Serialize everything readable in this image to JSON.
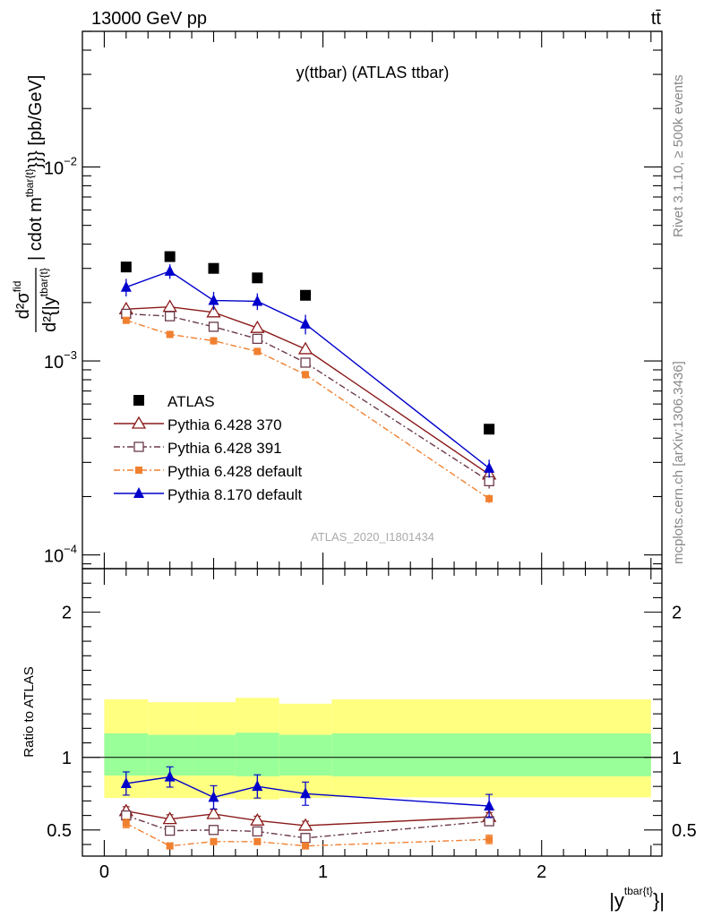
{
  "header": {
    "energy_label": "13000 GeV pp",
    "process_label": "tt̄"
  },
  "side_labels": {
    "rivet": "Rivet 3.1.10, ≥ 500k events",
    "mcplots": "mcplots.cern.ch [arXiv:1306.3436]"
  },
  "chart_data": [
    {
      "type": "line",
      "title": "y(ttbar) (ATLAS ttbar)",
      "analysis_label": "ATLAS_2020_I1801434",
      "ylabel": "d²σfid / d²{|ytbar{t}|cdot mtbar{t}}} [pb/GeV]",
      "ylabel_parts": {
        "num": "d²σ",
        "num_sup": "fid",
        "den": "d²{|y",
        "den_sup": "tbar{t}",
        "rest": "| cdot m",
        "rest_sup": "tbar{t}",
        "tail": "}}} [pb/GeV]"
      },
      "yscale": "log",
      "xlim": [
        -0.1,
        2.55
      ],
      "ylim": [
        8.5e-05,
        0.05
      ],
      "yticks": [
        {
          "value": 0.01,
          "base": "10",
          "exp": "−2"
        },
        {
          "value": 0.001,
          "base": "10",
          "exp": "−3"
        },
        {
          "value": 0.0001,
          "base": "10",
          "exp": "−4"
        }
      ],
      "legend_position": "bottom-left",
      "series": [
        {
          "name": "ATLAS",
          "marker": "filled-square",
          "color": "#000000",
          "x": [
            0.1,
            0.3,
            0.5,
            0.7,
            0.92,
            1.76
          ],
          "y": [
            0.00305,
            0.00345,
            0.003,
            0.00268,
            0.00218,
            0.000445
          ]
        },
        {
          "name": "Pythia 6.428 370",
          "marker": "open-triangle",
          "color": "#8b1a1a",
          "dash": "solid",
          "x": [
            0.1,
            0.3,
            0.5,
            0.7,
            0.92,
            1.76
          ],
          "y": [
            0.00185,
            0.0019,
            0.00178,
            0.00148,
            0.00115,
            0.00026
          ],
          "err": [
            8e-05,
            8e-05,
            8e-05,
            7e-05,
            6e-05,
            2e-05
          ]
        },
        {
          "name": "Pythia 6.428 391",
          "marker": "open-square",
          "color": "#6b3a4a",
          "dash": "dashdot",
          "x": [
            0.1,
            0.3,
            0.5,
            0.7,
            0.92,
            1.76
          ],
          "y": [
            0.00175,
            0.0017,
            0.0015,
            0.0013,
            0.00098,
            0.00024
          ],
          "err": [
            7e-05,
            7e-05,
            7e-05,
            6e-05,
            5e-05,
            2e-05
          ]
        },
        {
          "name": "Pythia 6.428 default",
          "marker": "filled-circle",
          "color": "#f08030",
          "dash": "dashdot",
          "x": [
            0.1,
            0.3,
            0.5,
            0.7,
            0.92,
            1.76
          ],
          "y": [
            0.00162,
            0.00137,
            0.00127,
            0.00112,
            0.00085,
            0.000195
          ],
          "err": [
            7e-05,
            6e-05,
            6e-05,
            5e-05,
            4e-05,
            1e-05
          ]
        },
        {
          "name": "Pythia 8.170 default",
          "marker": "filled-triangle",
          "color": "#0000cc",
          "dash": "solid",
          "x": [
            0.1,
            0.3,
            0.5,
            0.7,
            0.92,
            1.76
          ],
          "y": [
            0.0024,
            0.0029,
            0.00205,
            0.00203,
            0.00155,
            0.00028
          ],
          "err": [
            0.00025,
            0.00025,
            0.00022,
            0.0002,
            0.00018,
            3e-05
          ]
        }
      ]
    },
    {
      "type": "line",
      "ylabel": "Ratio to ATLAS",
      "xlabel_base": "|y",
      "xlabel_sup": "tbar{t}",
      "xlabel_tail": "}|",
      "xlim": [
        -0.1,
        2.55
      ],
      "ylim": [
        0.32,
        2.3
      ],
      "yticks": [
        0.5,
        1,
        2
      ],
      "xticks": [
        0,
        1,
        2
      ],
      "uncertainty_bands": [
        {
          "x0": 0.0,
          "x1": 0.2,
          "yellow": [
            0.72,
            1.4
          ],
          "green": [
            0.875,
            1.165
          ]
        },
        {
          "x0": 0.2,
          "x1": 0.4,
          "yellow": [
            0.72,
            1.38
          ],
          "green": [
            0.875,
            1.155
          ]
        },
        {
          "x0": 0.4,
          "x1": 0.6,
          "yellow": [
            0.72,
            1.38
          ],
          "green": [
            0.875,
            1.155
          ]
        },
        {
          "x0": 0.6,
          "x1": 0.8,
          "yellow": [
            0.71,
            1.41
          ],
          "green": [
            0.87,
            1.17
          ]
        },
        {
          "x0": 0.8,
          "x1": 1.04,
          "yellow": [
            0.72,
            1.37
          ],
          "green": [
            0.875,
            1.155
          ]
        },
        {
          "x0": 1.04,
          "x1": 2.5,
          "yellow": [
            0.725,
            1.4
          ],
          "green": [
            0.87,
            1.165
          ]
        }
      ],
      "series": [
        {
          "name": "Pythia 6.428 370",
          "marker": "open-triangle",
          "color": "#8b1a1a",
          "dash": "solid",
          "x": [
            0.1,
            0.3,
            0.5,
            0.7,
            0.92,
            1.76
          ],
          "y": [
            0.63,
            0.575,
            0.61,
            0.565,
            0.53,
            0.59
          ],
          "err": [
            0.03,
            0.03,
            0.03,
            0.03,
            0.03,
            0.03
          ]
        },
        {
          "name": "Pythia 6.428 391",
          "marker": "open-square",
          "color": "#6b3a4a",
          "dash": "dashdot",
          "x": [
            0.1,
            0.3,
            0.5,
            0.7,
            0.92,
            1.76
          ],
          "y": [
            0.6,
            0.495,
            0.5,
            0.49,
            0.445,
            0.56
          ],
          "err": [
            0.03,
            0.03,
            0.03,
            0.03,
            0.03,
            0.03
          ]
        },
        {
          "name": "Pythia 6.428 default",
          "marker": "filled-circle",
          "color": "#f08030",
          "dash": "dashdot",
          "x": [
            0.1,
            0.3,
            0.5,
            0.7,
            0.92,
            1.76
          ],
          "y": [
            0.545,
            0.39,
            0.42,
            0.42,
            0.39,
            0.435
          ],
          "err": [
            0.03,
            0.02,
            0.02,
            0.02,
            0.02,
            0.03
          ]
        },
        {
          "name": "Pythia 8.170 default",
          "marker": "filled-triangle",
          "color": "#0000cc",
          "dash": "solid",
          "x": [
            0.1,
            0.3,
            0.5,
            0.7,
            0.92,
            1.76
          ],
          "y": [
            0.82,
            0.865,
            0.725,
            0.8,
            0.75,
            0.665
          ],
          "err": [
            0.08,
            0.07,
            0.08,
            0.08,
            0.08,
            0.08
          ]
        }
      ]
    }
  ]
}
